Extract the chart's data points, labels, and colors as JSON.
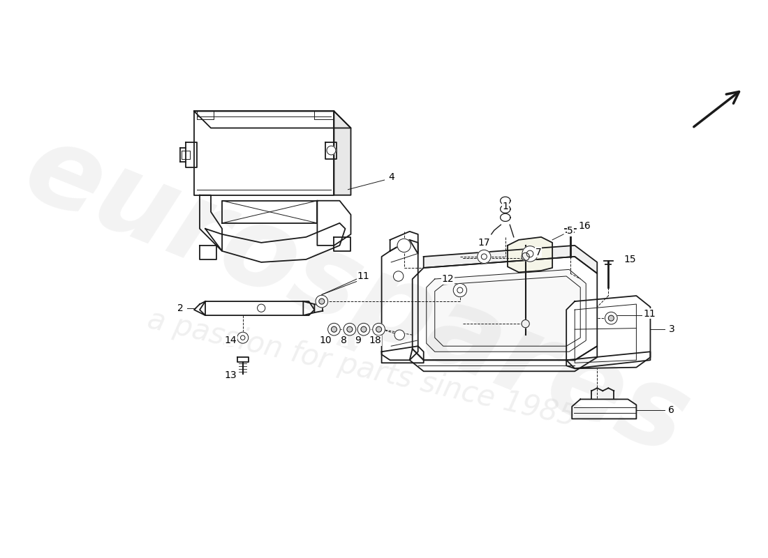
{
  "bg_color": "#ffffff",
  "line_color": "#1a1a1a",
  "watermark_text1": "eurospares",
  "watermark_text2": "a passion for parts since 1985",
  "watermark_color": "#c8c8c8",
  "watermark_alpha": 0.22,
  "arrow_color": "#000000",
  "lw_main": 1.3,
  "lw_thin": 0.7,
  "lw_dashed": 0.7
}
